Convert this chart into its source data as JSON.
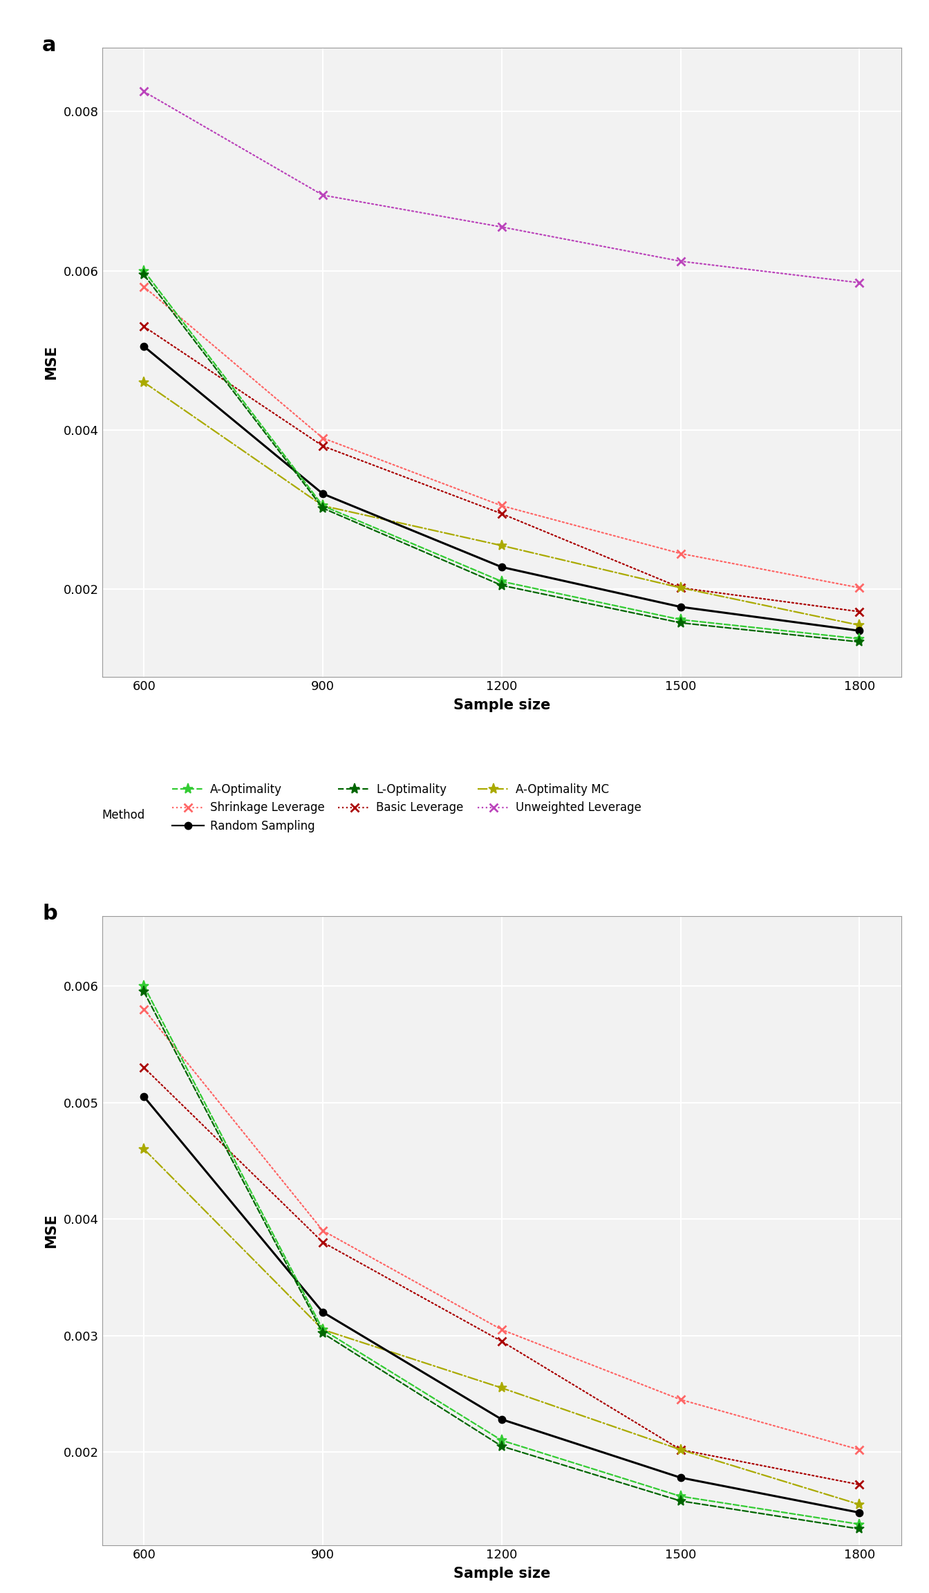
{
  "x": [
    600,
    900,
    1200,
    1500,
    1800
  ],
  "panel_a": {
    "A_Optimality": [
      0.006,
      0.00305,
      0.0021,
      0.00162,
      0.00138
    ],
    "L_Optimality": [
      0.00595,
      0.00302,
      0.00205,
      0.00158,
      0.00134
    ],
    "A_Optimality_MC": [
      0.0046,
      0.00305,
      0.00255,
      0.00202,
      0.00155
    ],
    "Shrinkage_Leverage": [
      0.0058,
      0.0039,
      0.00305,
      0.00245,
      0.00202
    ],
    "Basic_Leverage": [
      0.0053,
      0.0038,
      0.00295,
      0.00202,
      0.00172
    ],
    "Unweighted_Leverage": [
      0.00825,
      0.00695,
      0.00655,
      0.00612,
      0.00585
    ],
    "Random_Sampling": [
      0.00505,
      0.0032,
      0.00228,
      0.00178,
      0.00148
    ]
  },
  "panel_b": {
    "A_Optimality": [
      0.006,
      0.00305,
      0.0021,
      0.00162,
      0.00138
    ],
    "L_Optimality": [
      0.00595,
      0.00302,
      0.00205,
      0.00158,
      0.00134
    ],
    "A_Optimality_MC": [
      0.0046,
      0.00305,
      0.00255,
      0.00202,
      0.00155
    ],
    "Shrinkage_Leverage": [
      0.0058,
      0.0039,
      0.00305,
      0.00245,
      0.00202
    ],
    "Basic_Leverage": [
      0.0053,
      0.0038,
      0.00295,
      0.00202,
      0.00172
    ],
    "Random_Sampling": [
      0.00505,
      0.0032,
      0.00228,
      0.00178,
      0.00148
    ]
  },
  "colors": {
    "A_Optimality": "#33CC33",
    "L_Optimality": "#006600",
    "A_Optimality_MC": "#AAAA00",
    "Shrinkage_Leverage": "#FF6666",
    "Basic_Leverage": "#AA0000",
    "Unweighted_Leverage": "#BB44BB",
    "Random_Sampling": "#000000"
  },
  "ylim_a": [
    0.0009,
    0.0088
  ],
  "ylim_b": [
    0.0012,
    0.0066
  ],
  "yticks_a": [
    0.002,
    0.004,
    0.006,
    0.008
  ],
  "yticks_b": [
    0.002,
    0.003,
    0.004,
    0.005,
    0.006
  ],
  "background_color": "#f2f2f2",
  "grid_color": "#ffffff"
}
